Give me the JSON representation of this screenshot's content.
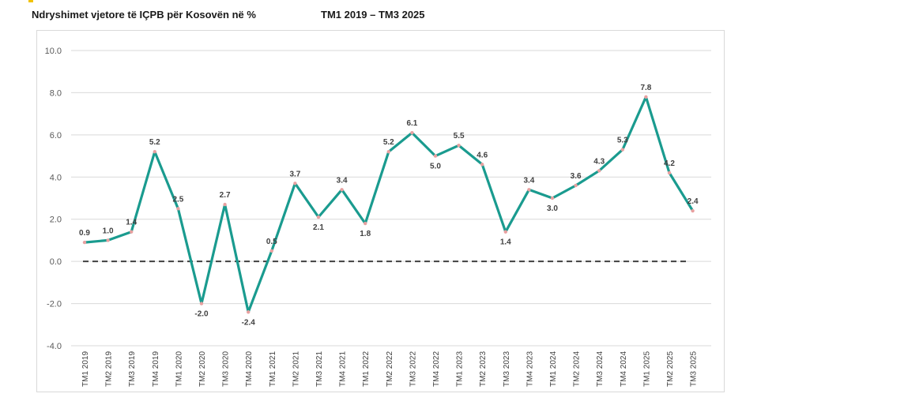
{
  "header": {
    "title": "Ndryshimet vjetore të IÇPB për Kosovën në %",
    "period": "TM1 2019 – TM3 2025"
  },
  "colors": {
    "line": "#1a9b8f",
    "grid": "#d9d9d9",
    "zero_line": "#404040",
    "marker": "#e8a0a0",
    "accent": "#f2c200"
  },
  "chart_data": {
    "type": "line",
    "title": "Ndryshimet vjetore të IÇPB për Kosovën në %",
    "subtitle": "TM1 2019 – TM3 2025",
    "xlabel": "",
    "ylabel": "",
    "ylim": [
      -4.0,
      10.0
    ],
    "yticks": [
      "10.0",
      "8.0",
      "6.0",
      "4.0",
      "2.0",
      "0.0",
      "-2.0",
      "-4.0"
    ],
    "ytick_values": [
      10,
      8,
      6,
      4,
      2,
      0,
      -2,
      -4
    ],
    "grid": true,
    "categories": [
      "TM1 2019",
      "TM2 2019",
      "TM3 2019",
      "TM4 2019",
      "TM1 2020",
      "TM2 2020",
      "TM3 2020",
      "TM4 2020",
      "TM1 2021",
      "TM2 2021",
      "TM3 2021",
      "TM4 2021",
      "TM1 2022",
      "TM2 2022",
      "TM3 2022",
      "TM4 2022",
      "TM1 2023",
      "TM2 2023",
      "TM3 2023",
      "TM4 2023",
      "TM1 2024",
      "TM2 2024",
      "TM3 2024",
      "TM4 2024",
      "TM1 2025",
      "TM2 2025",
      "TM3 2025"
    ],
    "values": [
      0.9,
      1.0,
      1.4,
      5.2,
      2.5,
      -2.0,
      2.7,
      -2.4,
      0.5,
      3.7,
      2.1,
      3.4,
      1.8,
      5.2,
      6.1,
      5.0,
      5.5,
      4.6,
      1.4,
      3.4,
      3.0,
      3.6,
      4.3,
      5.3,
      7.8,
      4.2,
      2.4
    ],
    "value_labels": [
      "0.9",
      "1.0",
      "1.4",
      "5.2",
      "2.5",
      "-2.0",
      "2.7",
      "-2.4",
      "0.5",
      "3.7",
      "2.1",
      "3.4",
      "1.8",
      "5.2",
      "6.1",
      "5.0",
      "5.5",
      "4.6",
      "1.4",
      "3.4",
      "3.0",
      "3.6",
      "4.3",
      "5.3",
      "7.8",
      "4.2",
      "2.4"
    ]
  }
}
